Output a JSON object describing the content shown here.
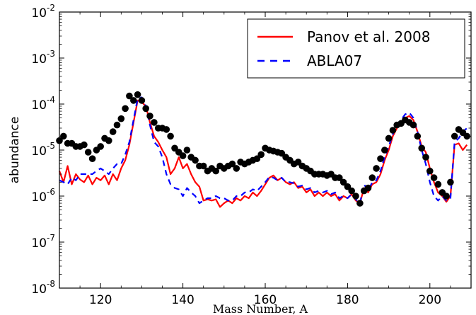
{
  "chart_data": {
    "type": "line",
    "xlabel": "Mass Number, A",
    "ylabel": "abundance",
    "xlim": [
      110,
      210
    ],
    "ylim": [
      1e-08,
      0.01
    ],
    "yscale": "log",
    "grid": false,
    "legend_position": "top-right",
    "x_ticks": [
      120,
      140,
      160,
      180,
      200
    ],
    "x_tick_labels": [
      "120",
      "140",
      "160",
      "180",
      "200"
    ],
    "y_ticks": [
      1e-08,
      1e-07,
      1e-06,
      1e-05,
      0.0001,
      0.001,
      0.01
    ],
    "y_tick_labels": [
      {
        "base": "10",
        "exp": "-8"
      },
      {
        "base": "10",
        "exp": "-7"
      },
      {
        "base": "10",
        "exp": "-6"
      },
      {
        "base": "10",
        "exp": "-5"
      },
      {
        "base": "10",
        "exp": "-4"
      },
      {
        "base": "10",
        "exp": "-3"
      },
      {
        "base": "10",
        "exp": "-2"
      }
    ],
    "series": [
      {
        "name": "Panov et al. 2008",
        "color": "#ff0000",
        "style": "solid",
        "x": [
          110,
          111,
          112,
          113,
          114,
          115,
          116,
          117,
          118,
          119,
          120,
          121,
          122,
          123,
          124,
          125,
          126,
          127,
          128,
          129,
          130,
          131,
          132,
          133,
          134,
          135,
          136,
          137,
          138,
          139,
          140,
          141,
          142,
          143,
          144,
          145,
          146,
          147,
          148,
          149,
          150,
          151,
          152,
          153,
          154,
          155,
          156,
          157,
          158,
          159,
          160,
          161,
          162,
          163,
          164,
          165,
          166,
          167,
          168,
          169,
          170,
          171,
          172,
          173,
          174,
          175,
          176,
          177,
          178,
          179,
          180,
          181,
          182,
          183,
          184,
          185,
          186,
          187,
          188,
          189,
          190,
          191,
          192,
          193,
          194,
          195,
          196,
          197,
          198,
          199,
          200,
          201,
          202,
          203,
          204,
          205,
          206,
          207,
          208,
          209
        ],
        "y": [
          3.5e-06,
          2e-06,
          4.5e-06,
          1.8e-06,
          3e-06,
          2.3e-06,
          2e-06,
          2.8e-06,
          1.8e-06,
          2.5e-06,
          2.2e-06,
          2.8e-06,
          1.8e-06,
          3e-06,
          2.2e-06,
          4e-06,
          6e-06,
          1.3e-05,
          4e-05,
          0.00012,
          0.00011,
          9e-05,
          4e-05,
          2e-05,
          1.5e-05,
          1e-05,
          7e-06,
          3e-06,
          4e-06,
          7e-06,
          4e-06,
          5e-06,
          3e-06,
          2e-06,
          1.6e-06,
          8e-07,
          8.5e-07,
          8e-07,
          8.5e-07,
          5.8e-07,
          7e-07,
          8e-07,
          7e-07,
          9e-07,
          8e-07,
          1e-06,
          9e-07,
          1.2e-06,
          1e-06,
          1.3e-06,
          1.8e-06,
          2.5e-06,
          2.8e-06,
          2.2e-06,
          2.5e-06,
          2e-06,
          1.8e-06,
          2e-06,
          1.5e-06,
          1.6e-06,
          1.2e-06,
          1.4e-06,
          1e-06,
          1.2e-06,
          1e-06,
          1.2e-06,
          1e-06,
          1.1e-06,
          8e-07,
          1e-06,
          9e-07,
          1.1e-06,
          8e-07,
          7e-07,
          1.5e-06,
          1.2e-06,
          1.8e-06,
          2e-06,
          3e-06,
          6e-06,
          1e-05,
          2e-05,
          3e-05,
          4e-05,
          5e-05,
          5.5e-05,
          4.5e-05,
          2.5e-05,
          1.2e-05,
          9e-06,
          4e-06,
          2e-06,
          1.2e-06,
          1e-06,
          7.5e-07,
          1e-06,
          1.3e-05,
          1.4e-05,
          1e-05,
          1.3e-05
        ]
      },
      {
        "name": "ABLA07",
        "color": "#0000ff",
        "style": "dashed",
        "x": [
          110,
          111,
          112,
          113,
          114,
          115,
          116,
          117,
          118,
          119,
          120,
          121,
          122,
          123,
          124,
          125,
          126,
          127,
          128,
          129,
          130,
          131,
          132,
          133,
          134,
          135,
          136,
          137,
          138,
          139,
          140,
          141,
          142,
          143,
          144,
          145,
          146,
          147,
          148,
          149,
          150,
          151,
          152,
          153,
          154,
          155,
          156,
          157,
          158,
          159,
          160,
          161,
          162,
          163,
          164,
          165,
          166,
          167,
          168,
          169,
          170,
          171,
          172,
          173,
          174,
          175,
          176,
          177,
          178,
          179,
          180,
          181,
          182,
          183,
          184,
          185,
          186,
          187,
          188,
          189,
          190,
          191,
          192,
          193,
          194,
          195,
          196,
          197,
          198,
          199,
          200,
          201,
          202,
          203,
          204,
          205,
          206,
          207,
          208,
          209
        ],
        "y": [
          2.2e-06,
          2e-06,
          1.8e-06,
          2.5e-06,
          2.2e-06,
          3e-06,
          3e-06,
          3e-06,
          3e-06,
          3.5e-06,
          4e-06,
          3.5e-06,
          3e-06,
          4e-06,
          5e-06,
          5e-06,
          8e-06,
          1.5e-05,
          4.5e-05,
          0.00013,
          0.00014,
          9e-05,
          3.5e-05,
          1.5e-05,
          1.2e-05,
          7e-06,
          3e-06,
          1.8e-06,
          1.5e-06,
          1.4e-06,
          1e-06,
          1.5e-06,
          1.2e-06,
          1e-06,
          7e-07,
          8e-07,
          9e-07,
          9e-07,
          1e-06,
          9e-07,
          9e-07,
          8e-07,
          8e-07,
          1e-06,
          1e-06,
          1.2e-06,
          1.2e-06,
          1.4e-06,
          1.3e-06,
          1.6e-06,
          2e-06,
          2.6e-06,
          2.5e-06,
          2.2e-06,
          2.5e-06,
          2e-06,
          2e-06,
          1.9e-06,
          1.6e-06,
          1.7e-06,
          1.4e-06,
          1.5e-06,
          1.2e-06,
          1.3e-06,
          1.2e-06,
          1.3e-06,
          1.1e-06,
          1.2e-06,
          9e-07,
          1e-06,
          9e-07,
          1.1e-06,
          8.5e-07,
          7e-07,
          1.8e-06,
          1.3e-06,
          2e-06,
          2.2e-06,
          3.5e-06,
          7e-06,
          1.2e-05,
          2.2e-05,
          3.5e-05,
          4.5e-05,
          6e-05,
          6.5e-05,
          5e-05,
          2.5e-05,
          1e-05,
          5e-06,
          2e-06,
          1e-06,
          8e-07,
          1e-06,
          8e-07,
          9e-07,
          1.5e-05,
          1.8e-05,
          2.5e-05,
          3e-05
        ]
      },
      {
        "name": "",
        "color": "#000000",
        "style": "markers",
        "x": [
          110,
          111,
          112,
          113,
          114,
          115,
          116,
          117,
          118,
          119,
          120,
          121,
          122,
          123,
          124,
          125,
          126,
          127,
          128,
          129,
          130,
          131,
          132,
          133,
          134,
          135,
          136,
          137,
          138,
          139,
          140,
          141,
          142,
          143,
          144,
          145,
          146,
          147,
          148,
          149,
          150,
          151,
          152,
          153,
          154,
          155,
          156,
          157,
          158,
          159,
          160,
          161,
          162,
          163,
          164,
          165,
          166,
          167,
          168,
          169,
          170,
          171,
          172,
          173,
          174,
          175,
          176,
          177,
          178,
          179,
          180,
          181,
          182,
          183,
          184,
          185,
          186,
          187,
          188,
          189,
          190,
          191,
          192,
          193,
          194,
          195,
          196,
          197,
          198,
          199,
          200,
          201,
          202,
          203,
          204,
          205,
          206,
          207,
          208,
          209
        ],
        "y": [
          1.6e-05,
          2e-05,
          1.4e-05,
          1.4e-05,
          1.2e-05,
          1.2e-05,
          1.3e-05,
          9e-06,
          6.5e-06,
          1e-05,
          1.2e-05,
          1.8e-05,
          1.6e-05,
          2.5e-05,
          3.5e-05,
          4.8e-05,
          8e-05,
          0.00015,
          0.00012,
          0.00016,
          0.00012,
          8e-05,
          5.5e-05,
          4e-05,
          3e-05,
          3e-05,
          2.8e-05,
          2e-05,
          1.1e-05,
          9e-06,
          7.5e-06,
          1e-05,
          7e-06,
          6e-06,
          4.5e-06,
          4.5e-06,
          3.5e-06,
          4e-06,
          3.5e-06,
          4.5e-06,
          4e-06,
          4.5e-06,
          5e-06,
          4e-06,
          5.5e-06,
          5e-06,
          5.5e-06,
          6e-06,
          6.5e-06,
          8e-06,
          1.1e-05,
          1e-05,
          9.5e-06,
          9e-06,
          8.5e-06,
          7e-06,
          6e-06,
          5e-06,
          5.5e-06,
          4.5e-06,
          4e-06,
          3.5e-06,
          3e-06,
          3e-06,
          3e-06,
          2.8e-06,
          3e-06,
          2.5e-06,
          2.5e-06,
          2e-06,
          1.6e-06,
          1.3e-06,
          1e-06,
          7e-07,
          1.3e-06,
          1.5e-06,
          2.5e-06,
          4e-06,
          6.5e-06,
          1e-05,
          1.8e-05,
          2.7e-05,
          3.5e-05,
          3.8e-05,
          4.5e-05,
          4e-05,
          3.5e-05,
          2e-05,
          1.1e-05,
          7e-06,
          3.5e-06,
          2.5e-06,
          1.8e-06,
          1.2e-06,
          1e-06,
          2e-06,
          2e-05,
          2.8e-05,
          2.4e-05,
          2e-05
        ]
      }
    ]
  }
}
